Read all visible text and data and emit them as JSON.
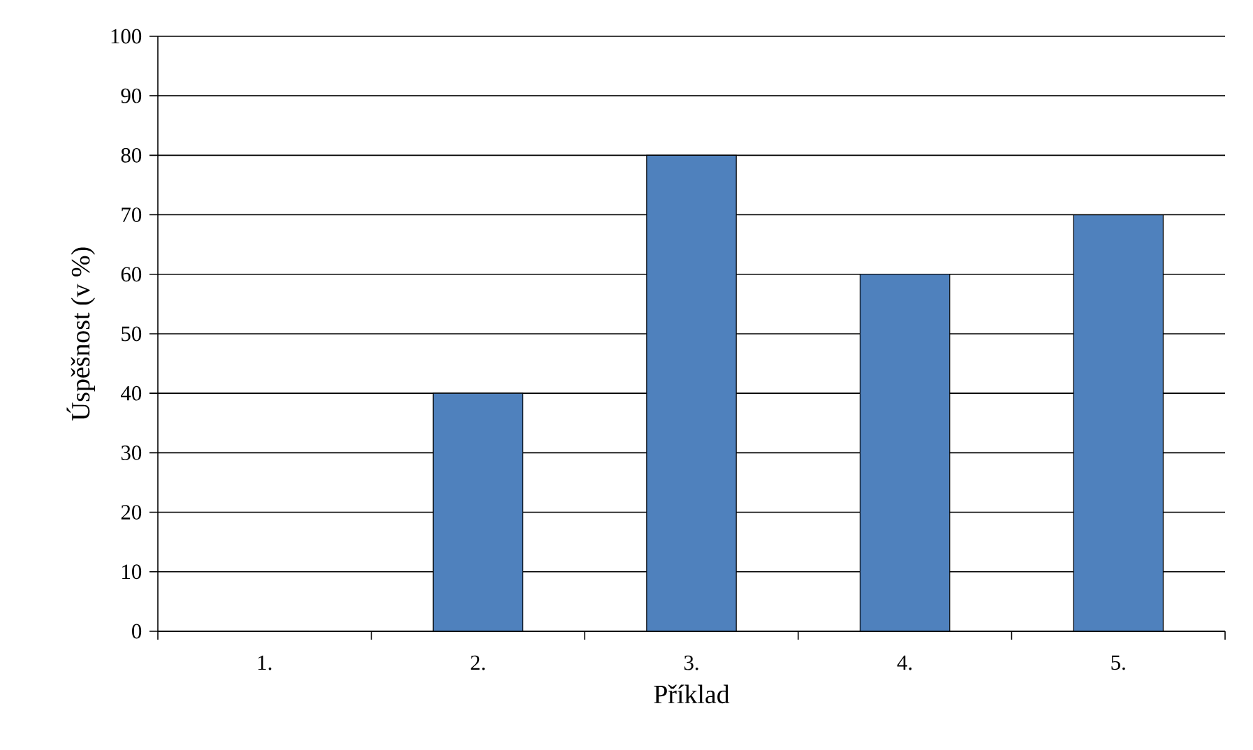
{
  "chart_data": {
    "type": "bar",
    "xlabel": "Příklad",
    "ylabel": "Úspěšnost (v %)",
    "categories": [
      "1.",
      "2.",
      "3.",
      "4.",
      "5."
    ],
    "values": [
      0,
      40,
      80,
      60,
      70
    ],
    "color": "#4f81bd",
    "ylim": [
      0,
      100
    ],
    "yticks": [
      0,
      10,
      20,
      30,
      40,
      50,
      60,
      70,
      80,
      90,
      100
    ],
    "grid": "y"
  }
}
